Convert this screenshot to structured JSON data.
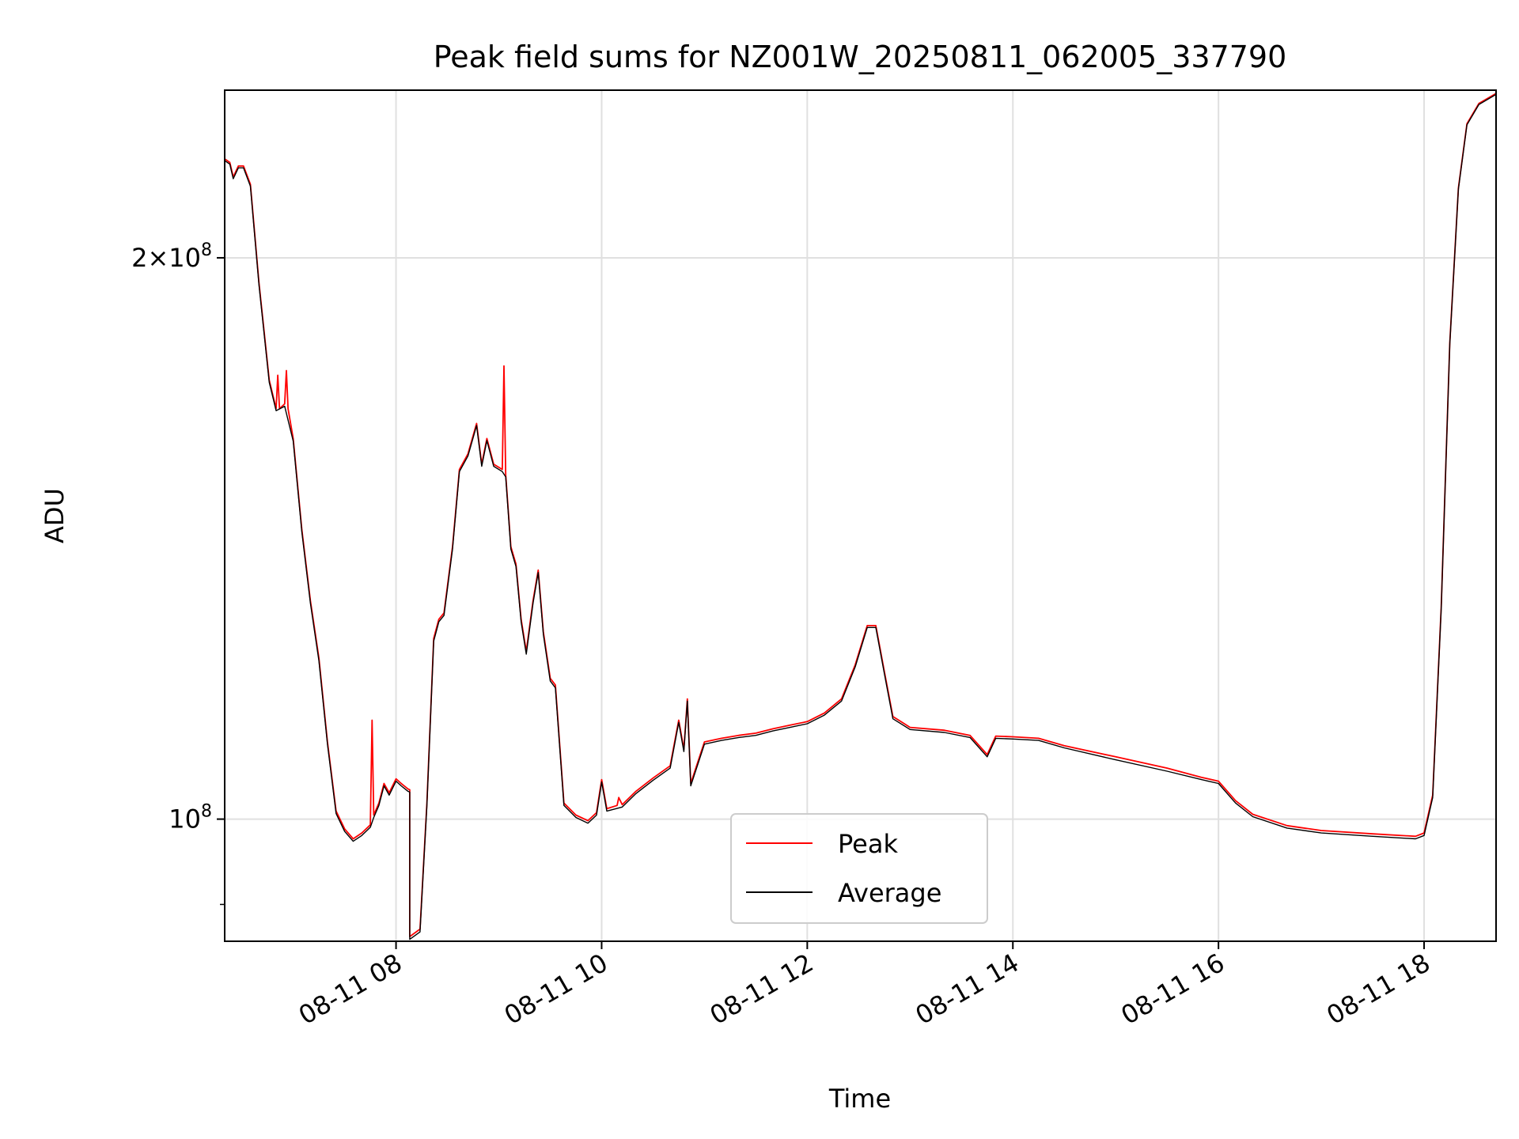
{
  "chart_data": {
    "type": "line",
    "title": "Peak field sums for NZ001W_20250811_062005_337790",
    "xlabel": "Time",
    "ylabel": "ADU",
    "y_scale": "log",
    "ylim": [
      86000000,
      246000000
    ],
    "xlim": [
      "2025-08-11 06:20",
      "2025-08-11 18:42"
    ],
    "x_ticks": [
      {
        "t": "2025-08-11 08:00",
        "label": "08-11 08"
      },
      {
        "t": "2025-08-11 10:00",
        "label": "08-11 10"
      },
      {
        "t": "2025-08-11 12:00",
        "label": "08-11 12"
      },
      {
        "t": "2025-08-11 14:00",
        "label": "08-11 14"
      },
      {
        "t": "2025-08-11 16:00",
        "label": "08-11 16"
      },
      {
        "t": "2025-08-11 18:00",
        "label": "08-11 18"
      }
    ],
    "y_ticks": [
      {
        "value": 200000000,
        "mantissa": "2",
        "exponent": "8"
      },
      {
        "value": 100000000,
        "mantissa": "",
        "exponent": "8"
      }
    ],
    "grid": true,
    "legend_position": "bottom-center",
    "series": [
      {
        "name": "Peak",
        "color": "#ff0000",
        "points": [
          [
            "2025-08-11 06:20",
            226000000
          ],
          [
            "2025-08-11 06:23",
            225000000
          ],
          [
            "2025-08-11 06:25",
            221000000
          ],
          [
            "2025-08-11 06:28",
            224000000
          ],
          [
            "2025-08-11 06:31",
            224000000
          ],
          [
            "2025-08-11 06:35",
            219000000
          ],
          [
            "2025-08-11 06:40",
            194000000
          ],
          [
            "2025-08-11 06:46",
            172000000
          ],
          [
            "2025-08-11 06:50",
            166000000
          ],
          [
            "2025-08-11 06:51",
            173000000
          ],
          [
            "2025-08-11 06:52",
            166000000
          ],
          [
            "2025-08-11 06:55",
            167000000
          ],
          [
            "2025-08-11 06:56",
            174000000
          ],
          [
            "2025-08-11 06:57",
            166000000
          ],
          [
            "2025-08-11 07:00",
            160000000
          ],
          [
            "2025-08-11 07:05",
            143000000
          ],
          [
            "2025-08-11 07:10",
            131000000
          ],
          [
            "2025-08-11 07:15",
            122000000
          ],
          [
            "2025-08-11 07:20",
            110000000
          ],
          [
            "2025-08-11 07:25",
            101000000
          ],
          [
            "2025-08-11 07:30",
            98800000
          ],
          [
            "2025-08-11 07:35",
            97600000
          ],
          [
            "2025-08-11 07:40",
            98300000
          ],
          [
            "2025-08-11 07:45",
            99300000
          ],
          [
            "2025-08-11 07:46",
            113000000
          ],
          [
            "2025-08-11 07:47",
            100500000
          ],
          [
            "2025-08-11 07:50",
            102000000
          ],
          [
            "2025-08-11 07:53",
            104500000
          ],
          [
            "2025-08-11 07:56",
            103300000
          ],
          [
            "2025-08-11 08:00",
            105100000
          ],
          [
            "2025-08-11 08:03",
            104500000
          ],
          [
            "2025-08-11 08:07",
            103800000
          ],
          [
            "2025-08-11 08:08",
            103700000
          ],
          [
            "2025-08-11 08:08",
            86500000
          ],
          [
            "2025-08-11 08:14",
            87300000
          ],
          [
            "2025-08-11 08:18",
            102000000
          ],
          [
            "2025-08-11 08:22",
            125000000
          ],
          [
            "2025-08-11 08:25",
            128000000
          ],
          [
            "2025-08-11 08:28",
            129000000
          ],
          [
            "2025-08-11 08:33",
            140000000
          ],
          [
            "2025-08-11 08:37",
            154000000
          ],
          [
            "2025-08-11 08:42",
            157000000
          ],
          [
            "2025-08-11 08:47",
            163000000
          ],
          [
            "2025-08-11 08:50",
            155000000
          ],
          [
            "2025-08-11 08:53",
            160000000
          ],
          [
            "2025-08-11 08:57",
            155000000
          ],
          [
            "2025-08-11 09:02",
            154000000
          ],
          [
            "2025-08-11 09:03",
            175000000
          ],
          [
            "2025-08-11 09:04",
            153000000
          ],
          [
            "2025-08-11 09:07",
            140000000
          ],
          [
            "2025-08-11 09:10",
            137000000
          ],
          [
            "2025-08-11 09:13",
            128000000
          ],
          [
            "2025-08-11 09:16",
            123000000
          ],
          [
            "2025-08-11 09:20",
            131000000
          ],
          [
            "2025-08-11 09:23",
            136000000
          ],
          [
            "2025-08-11 09:26",
            126000000
          ],
          [
            "2025-08-11 09:30",
            119000000
          ],
          [
            "2025-08-11 09:33",
            118000000
          ],
          [
            "2025-08-11 09:38",
            102000000
          ],
          [
            "2025-08-11 09:45",
            100500000
          ],
          [
            "2025-08-11 09:52",
            99800000
          ],
          [
            "2025-08-11 09:57",
            100800000
          ],
          [
            "2025-08-11 10:00",
            105000000
          ],
          [
            "2025-08-11 10:03",
            101300000
          ],
          [
            "2025-08-11 10:09",
            101700000
          ],
          [
            "2025-08-11 10:10",
            102700000
          ],
          [
            "2025-08-11 10:12",
            101800000
          ],
          [
            "2025-08-11 10:20",
            103500000
          ],
          [
            "2025-08-11 10:30",
            105200000
          ],
          [
            "2025-08-11 10:40",
            106800000
          ],
          [
            "2025-08-11 10:45",
            113000000
          ],
          [
            "2025-08-11 10:48",
            109000000
          ],
          [
            "2025-08-11 10:50",
            116000000
          ],
          [
            "2025-08-11 10:52",
            104500000
          ],
          [
            "2025-08-11 11:00",
            110000000
          ],
          [
            "2025-08-11 11:10",
            110500000
          ],
          [
            "2025-08-11 11:20",
            110900000
          ],
          [
            "2025-08-11 11:30",
            111200000
          ],
          [
            "2025-08-11 11:40",
            111800000
          ],
          [
            "2025-08-11 11:50",
            112300000
          ],
          [
            "2025-08-11 12:00",
            112800000
          ],
          [
            "2025-08-11 12:10",
            114000000
          ],
          [
            "2025-08-11 12:20",
            116000000
          ],
          [
            "2025-08-11 12:28",
            121000000
          ],
          [
            "2025-08-11 12:35",
            127000000
          ],
          [
            "2025-08-11 12:40",
            127000000
          ],
          [
            "2025-08-11 12:45",
            120000000
          ],
          [
            "2025-08-11 12:50",
            113500000
          ],
          [
            "2025-08-11 13:00",
            112000000
          ],
          [
            "2025-08-11 13:20",
            111600000
          ],
          [
            "2025-08-11 13:35",
            110900000
          ],
          [
            "2025-08-11 13:45",
            108300000
          ],
          [
            "2025-08-11 13:50",
            110800000
          ],
          [
            "2025-08-11 14:00",
            110700000
          ],
          [
            "2025-08-11 14:15",
            110500000
          ],
          [
            "2025-08-11 14:30",
            109500000
          ],
          [
            "2025-08-11 15:00",
            108000000
          ],
          [
            "2025-08-11 15:30",
            106500000
          ],
          [
            "2025-08-11 15:50",
            105300000
          ],
          [
            "2025-08-11 16:00",
            104800000
          ],
          [
            "2025-08-11 16:10",
            102300000
          ],
          [
            "2025-08-11 16:20",
            100600000
          ],
          [
            "2025-08-11 16:40",
            99200000
          ],
          [
            "2025-08-11 17:00",
            98600000
          ],
          [
            "2025-08-11 17:30",
            98200000
          ],
          [
            "2025-08-11 17:55",
            97900000
          ],
          [
            "2025-08-11 18:00",
            98300000
          ],
          [
            "2025-08-11 18:05",
            103000000
          ],
          [
            "2025-08-11 18:10",
            130000000
          ],
          [
            "2025-08-11 18:15",
            180000000
          ],
          [
            "2025-08-11 18:20",
            218000000
          ],
          [
            "2025-08-11 18:25",
            236000000
          ],
          [
            "2025-08-11 18:32",
            242000000
          ],
          [
            "2025-08-11 18:42",
            245000000
          ]
        ]
      },
      {
        "name": "Average",
        "color": "#000000",
        "points": [
          [
            "2025-08-11 06:20",
            225500000
          ],
          [
            "2025-08-11 06:23",
            224500000
          ],
          [
            "2025-08-11 06:25",
            220500000
          ],
          [
            "2025-08-11 06:28",
            223500000
          ],
          [
            "2025-08-11 06:31",
            223500000
          ],
          [
            "2025-08-11 06:35",
            218500000
          ],
          [
            "2025-08-11 06:40",
            193500000
          ],
          [
            "2025-08-11 06:46",
            171500000
          ],
          [
            "2025-08-11 06:50",
            165600000
          ],
          [
            "2025-08-11 06:55",
            166500000
          ],
          [
            "2025-08-11 07:00",
            159500000
          ],
          [
            "2025-08-11 07:05",
            142600000
          ],
          [
            "2025-08-11 07:10",
            130600000
          ],
          [
            "2025-08-11 07:15",
            121600000
          ],
          [
            "2025-08-11 07:20",
            109700000
          ],
          [
            "2025-08-11 07:25",
            100700000
          ],
          [
            "2025-08-11 07:30",
            98500000
          ],
          [
            "2025-08-11 07:35",
            97300000
          ],
          [
            "2025-08-11 07:40",
            98000000
          ],
          [
            "2025-08-11 07:45",
            99000000
          ],
          [
            "2025-08-11 07:47",
            100200000
          ],
          [
            "2025-08-11 07:50",
            101700000
          ],
          [
            "2025-08-11 07:53",
            104200000
          ],
          [
            "2025-08-11 07:56",
            103000000
          ],
          [
            "2025-08-11 08:00",
            104800000
          ],
          [
            "2025-08-11 08:03",
            104200000
          ],
          [
            "2025-08-11 08:07",
            103500000
          ],
          [
            "2025-08-11 08:08",
            103400000
          ],
          [
            "2025-08-11 08:08",
            86200000
          ],
          [
            "2025-08-11 08:14",
            87000000
          ],
          [
            "2025-08-11 08:18",
            101700000
          ],
          [
            "2025-08-11 08:22",
            124600000
          ],
          [
            "2025-08-11 08:25",
            127600000
          ],
          [
            "2025-08-11 08:28",
            128600000
          ],
          [
            "2025-08-11 08:33",
            139600000
          ],
          [
            "2025-08-11 08:37",
            153600000
          ],
          [
            "2025-08-11 08:42",
            156600000
          ],
          [
            "2025-08-11 08:47",
            162600000
          ],
          [
            "2025-08-11 08:50",
            154600000
          ],
          [
            "2025-08-11 08:53",
            159600000
          ],
          [
            "2025-08-11 08:57",
            154600000
          ],
          [
            "2025-08-11 09:02",
            153600000
          ],
          [
            "2025-08-11 09:04",
            152600000
          ],
          [
            "2025-08-11 09:07",
            139600000
          ],
          [
            "2025-08-11 09:10",
            136600000
          ],
          [
            "2025-08-11 09:13",
            127600000
          ],
          [
            "2025-08-11 09:16",
            122600000
          ],
          [
            "2025-08-11 09:20",
            130600000
          ],
          [
            "2025-08-11 09:23",
            135600000
          ],
          [
            "2025-08-11 09:26",
            125600000
          ],
          [
            "2025-08-11 09:30",
            118600000
          ],
          [
            "2025-08-11 09:33",
            117600000
          ],
          [
            "2025-08-11 09:38",
            101700000
          ],
          [
            "2025-08-11 09:45",
            100200000
          ],
          [
            "2025-08-11 09:52",
            99500000
          ],
          [
            "2025-08-11 09:57",
            100500000
          ],
          [
            "2025-08-11 10:00",
            104700000
          ],
          [
            "2025-08-11 10:03",
            101000000
          ],
          [
            "2025-08-11 10:12",
            101500000
          ],
          [
            "2025-08-11 10:20",
            103200000
          ],
          [
            "2025-08-11 10:30",
            104900000
          ],
          [
            "2025-08-11 10:40",
            106500000
          ],
          [
            "2025-08-11 10:45",
            112700000
          ],
          [
            "2025-08-11 10:48",
            108700000
          ],
          [
            "2025-08-11 10:50",
            115700000
          ],
          [
            "2025-08-11 10:52",
            104200000
          ],
          [
            "2025-08-11 11:00",
            109700000
          ],
          [
            "2025-08-11 11:10",
            110200000
          ],
          [
            "2025-08-11 11:20",
            110600000
          ],
          [
            "2025-08-11 11:30",
            110900000
          ],
          [
            "2025-08-11 11:40",
            111500000
          ],
          [
            "2025-08-11 11:50",
            112000000
          ],
          [
            "2025-08-11 12:00",
            112500000
          ],
          [
            "2025-08-11 12:10",
            113700000
          ],
          [
            "2025-08-11 12:20",
            115700000
          ],
          [
            "2025-08-11 12:28",
            120700000
          ],
          [
            "2025-08-11 12:35",
            126700000
          ],
          [
            "2025-08-11 12:40",
            126700000
          ],
          [
            "2025-08-11 12:45",
            119700000
          ],
          [
            "2025-08-11 12:50",
            113200000
          ],
          [
            "2025-08-11 13:00",
            111700000
          ],
          [
            "2025-08-11 13:20",
            111300000
          ],
          [
            "2025-08-11 13:35",
            110600000
          ],
          [
            "2025-08-11 13:45",
            108000000
          ],
          [
            "2025-08-11 13:50",
            110500000
          ],
          [
            "2025-08-11 14:00",
            110400000
          ],
          [
            "2025-08-11 14:15",
            110200000
          ],
          [
            "2025-08-11 14:30",
            109200000
          ],
          [
            "2025-08-11 15:00",
            107600000
          ],
          [
            "2025-08-11 15:30",
            106100000
          ],
          [
            "2025-08-11 15:50",
            105000000
          ],
          [
            "2025-08-11 16:00",
            104500000
          ],
          [
            "2025-08-11 16:10",
            102000000
          ],
          [
            "2025-08-11 16:20",
            100300000
          ],
          [
            "2025-08-11 16:40",
            98900000
          ],
          [
            "2025-08-11 17:00",
            98300000
          ],
          [
            "2025-08-11 17:30",
            97900000
          ],
          [
            "2025-08-11 17:55",
            97600000
          ],
          [
            "2025-08-11 18:00",
            98000000
          ],
          [
            "2025-08-11 18:05",
            102700000
          ],
          [
            "2025-08-11 18:10",
            129700000
          ],
          [
            "2025-08-11 18:15",
            179700000
          ],
          [
            "2025-08-11 18:20",
            217700000
          ],
          [
            "2025-08-11 18:25",
            235700000
          ],
          [
            "2025-08-11 18:32",
            241700000
          ],
          [
            "2025-08-11 18:42",
            244700000
          ]
        ]
      }
    ]
  }
}
